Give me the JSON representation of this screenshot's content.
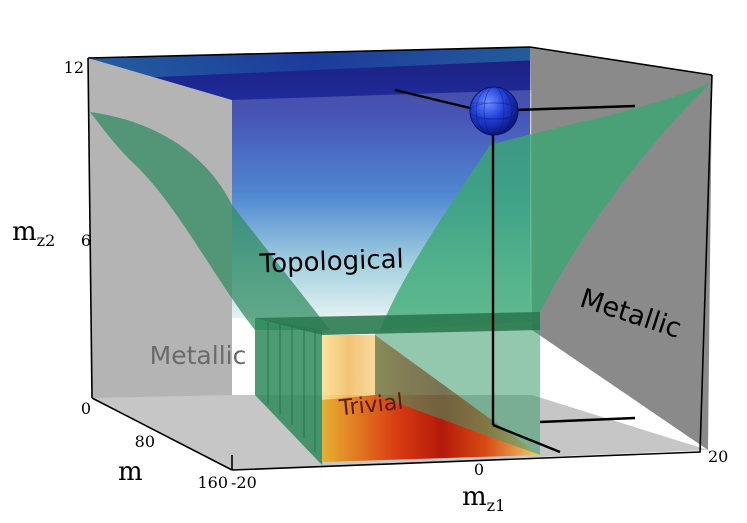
{
  "chart_data": {
    "type": "3d-phase-diagram",
    "axes": {
      "x": {
        "label_main": "m",
        "label_sub": "z1",
        "ticks": [
          "-20",
          "0",
          "20"
        ],
        "range": [
          -20,
          20
        ]
      },
      "y": {
        "label_main": "m",
        "ticks": [
          "0",
          "80",
          "160"
        ],
        "range": [
          0,
          160
        ]
      },
      "z": {
        "label_main": "m",
        "label_sub": "z2",
        "ticks": [
          "0",
          "6",
          "12"
        ],
        "range": [
          0,
          12
        ]
      }
    },
    "regions": [
      {
        "name": "Topological",
        "color": "#1a2f9a"
      },
      {
        "name": "Trivial",
        "color": "#c81e10"
      },
      {
        "name": "Metallic",
        "color": "#5e5e5e"
      },
      {
        "name": "Metallic",
        "color": "#7a7a7a"
      }
    ],
    "boundary_surface_color": "#2e9a68",
    "marker": {
      "shape": "sphere",
      "color": "#1f3fc8"
    }
  }
}
